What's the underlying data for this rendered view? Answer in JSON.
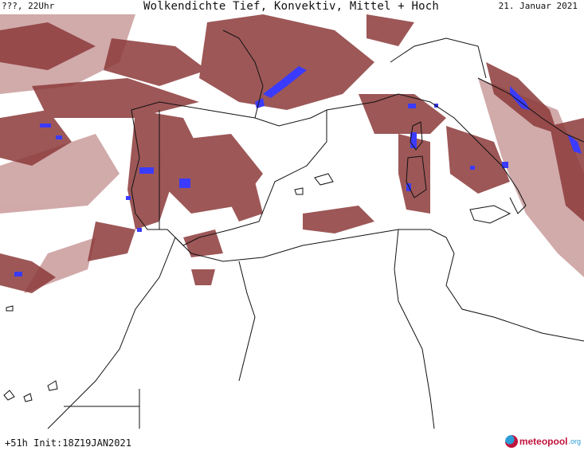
{
  "header": {
    "location": "???, 22Uhr",
    "title": "Wolkendichte  Tief, Konvektiv, Mittel + Hoch",
    "date": "21. Januar 2021"
  },
  "footer": {
    "run_info": "+51h Init:18Z19JAN2021",
    "brand_name": "meteopool",
    "brand_tld": ".org"
  },
  "colors": {
    "cloud_dense": "#8c3a3a",
    "cloud_medium": "#a86a6a",
    "cloud_light": "#cfa5a5",
    "convective": "#3b3bff",
    "coastline": "#111111",
    "background": "#ffffff"
  },
  "icons": {
    "brand_logo": "meteopool-logo-icon"
  }
}
